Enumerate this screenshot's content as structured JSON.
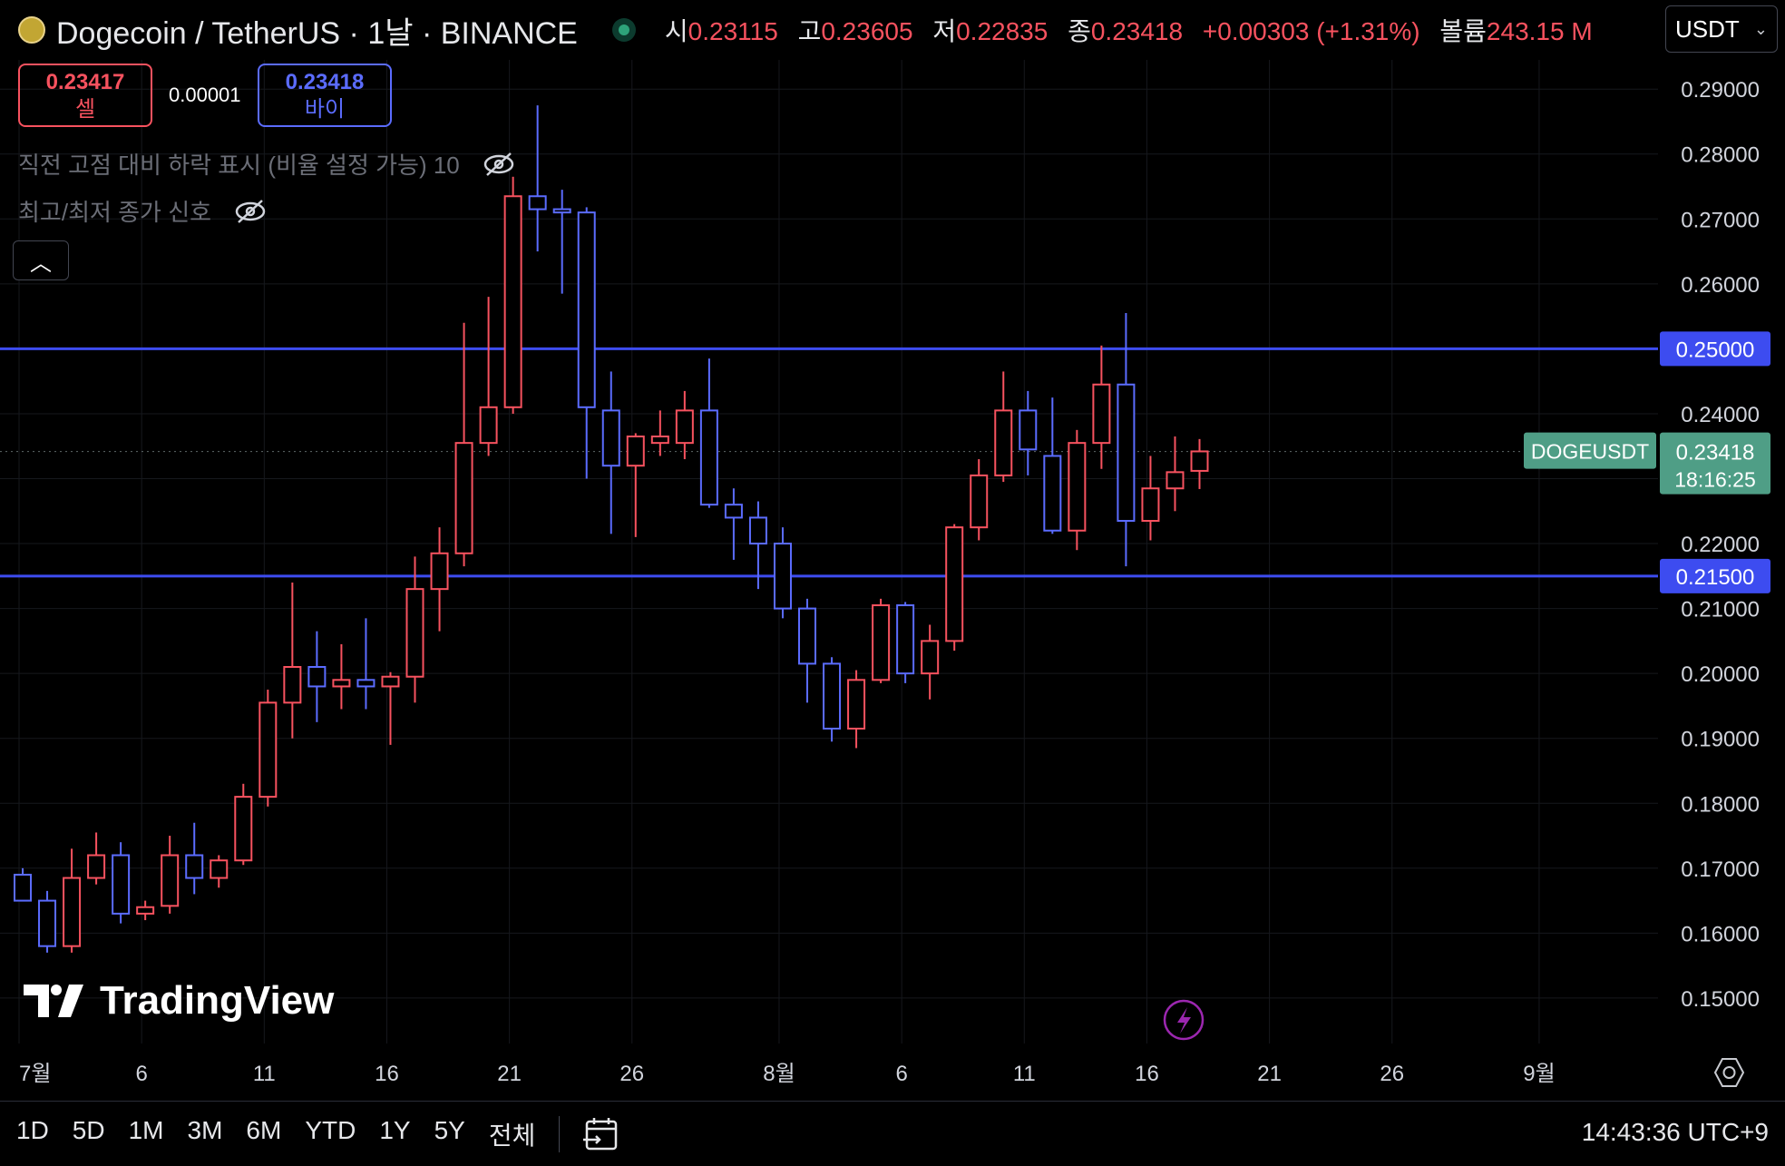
{
  "header": {
    "symbol_title": "Dogecoin / TetherUS · 1날 · BINANCE",
    "ohlc": [
      {
        "key": "시",
        "value": "0.23115"
      },
      {
        "key": "고",
        "value": "0.23605"
      },
      {
        "key": "저",
        "value": "0.22835"
      },
      {
        "key": "종",
        "value": "0.23418"
      }
    ],
    "change": "+0.00303 (+1.31%)",
    "volume_label": "볼륨",
    "volume_value": "243.15 M",
    "currency_select": "USDT"
  },
  "trade": {
    "sell_price": "0.23417",
    "sell_label": "셀",
    "spread": "0.00001",
    "buy_price": "0.23418",
    "buy_label": "바이"
  },
  "indicators": [
    "직전 고점 대비 하락 표시 (비율 설정 가능) 10",
    "최고/최저 종가 신호"
  ],
  "price_labels": {
    "symbol_tag": "DOGEUSDT",
    "last_price": "0.23418",
    "countdown": "18:16:25"
  },
  "logo_text": "TradingView",
  "bottom_bar": {
    "ranges": [
      "1D",
      "5D",
      "1M",
      "3M",
      "6M",
      "YTD",
      "1Y",
      "5Y",
      "전체"
    ],
    "clock": "14:43:36 UTC+9"
  },
  "colors": {
    "up": "#f7525f",
    "down": "#5b6cff",
    "level": "#3d4cf0",
    "last": "#4f9e86",
    "background": "#000000"
  },
  "chart_data": {
    "type": "candlestick",
    "y_ticks": [
      "0.15000",
      "0.16000",
      "0.17000",
      "0.18000",
      "0.19000",
      "0.20000",
      "0.21000",
      "0.22000",
      "0.23000",
      "0.24000",
      "0.25000",
      "0.26000",
      "0.27000",
      "0.28000",
      "0.29000"
    ],
    "ylim": [
      0.143,
      0.2945
    ],
    "x_ticks": [
      {
        "label": "7월",
        "day": 0
      },
      {
        "label": "6",
        "day": 5
      },
      {
        "label": "11",
        "day": 10
      },
      {
        "label": "16",
        "day": 15
      },
      {
        "label": "21",
        "day": 20
      },
      {
        "label": "26",
        "day": 25
      },
      {
        "label": "8월",
        "day": 31
      },
      {
        "label": "6",
        "day": 36
      },
      {
        "label": "11",
        "day": 41
      },
      {
        "label": "16",
        "day": 46
      },
      {
        "label": "21",
        "day": 51
      },
      {
        "label": "26",
        "day": 56
      },
      {
        "label": "9월",
        "day": 62
      }
    ],
    "xlim": [
      0,
      66.7
    ],
    "horizontal_lines": [
      0.25,
      0.215
    ],
    "last_price": 0.23418,
    "candles": [
      {
        "day": 0,
        "o": 0.169,
        "h": 0.17,
        "l": 0.165,
        "c": 0.165
      },
      {
        "day": 1,
        "o": 0.165,
        "h": 0.1665,
        "l": 0.157,
        "c": 0.158
      },
      {
        "day": 2,
        "o": 0.158,
        "h": 0.173,
        "l": 0.157,
        "c": 0.1685
      },
      {
        "day": 3,
        "o": 0.1685,
        "h": 0.1755,
        "l": 0.1675,
        "c": 0.172
      },
      {
        "day": 4,
        "o": 0.172,
        "h": 0.174,
        "l": 0.1615,
        "c": 0.163
      },
      {
        "day": 5,
        "o": 0.163,
        "h": 0.165,
        "l": 0.162,
        "c": 0.164
      },
      {
        "day": 6,
        "o": 0.1642,
        "h": 0.175,
        "l": 0.163,
        "c": 0.172
      },
      {
        "day": 7,
        "o": 0.172,
        "h": 0.177,
        "l": 0.166,
        "c": 0.1685
      },
      {
        "day": 8,
        "o": 0.1685,
        "h": 0.172,
        "l": 0.167,
        "c": 0.1712
      },
      {
        "day": 9,
        "o": 0.1712,
        "h": 0.183,
        "l": 0.1705,
        "c": 0.181
      },
      {
        "day": 10,
        "o": 0.181,
        "h": 0.1975,
        "l": 0.1795,
        "c": 0.1955
      },
      {
        "day": 11,
        "o": 0.1955,
        "h": 0.214,
        "l": 0.19,
        "c": 0.201
      },
      {
        "day": 12,
        "o": 0.201,
        "h": 0.2065,
        "l": 0.1925,
        "c": 0.198
      },
      {
        "day": 13,
        "o": 0.198,
        "h": 0.2045,
        "l": 0.1945,
        "c": 0.199
      },
      {
        "day": 14,
        "o": 0.199,
        "h": 0.2085,
        "l": 0.1945,
        "c": 0.198
      },
      {
        "day": 15,
        "o": 0.198,
        "h": 0.2002,
        "l": 0.189,
        "c": 0.1995
      },
      {
        "day": 16,
        "o": 0.1995,
        "h": 0.218,
        "l": 0.1955,
        "c": 0.213
      },
      {
        "day": 17,
        "o": 0.213,
        "h": 0.2225,
        "l": 0.2065,
        "c": 0.2185
      },
      {
        "day": 18,
        "o": 0.2185,
        "h": 0.254,
        "l": 0.2165,
        "c": 0.2355
      },
      {
        "day": 19,
        "o": 0.2355,
        "h": 0.258,
        "l": 0.2335,
        "c": 0.241
      },
      {
        "day": 20,
        "o": 0.241,
        "h": 0.2765,
        "l": 0.24,
        "c": 0.2735
      },
      {
        "day": 21,
        "o": 0.2735,
        "h": 0.2875,
        "l": 0.265,
        "c": 0.2715
      },
      {
        "day": 22,
        "o": 0.2715,
        "h": 0.2745,
        "l": 0.2585,
        "c": 0.271
      },
      {
        "day": 23,
        "o": 0.271,
        "h": 0.2718,
        "l": 0.23,
        "c": 0.241
      },
      {
        "day": 24,
        "o": 0.2405,
        "h": 0.2465,
        "l": 0.2215,
        "c": 0.232
      },
      {
        "day": 25,
        "o": 0.232,
        "h": 0.237,
        "l": 0.221,
        "c": 0.2365
      },
      {
        "day": 26,
        "o": 0.2355,
        "h": 0.2405,
        "l": 0.2335,
        "c": 0.2365
      },
      {
        "day": 27,
        "o": 0.2355,
        "h": 0.2435,
        "l": 0.233,
        "c": 0.2405
      },
      {
        "day": 28,
        "o": 0.2405,
        "h": 0.2485,
        "l": 0.2255,
        "c": 0.226
      },
      {
        "day": 29,
        "o": 0.226,
        "h": 0.2285,
        "l": 0.2175,
        "c": 0.224
      },
      {
        "day": 30,
        "o": 0.224,
        "h": 0.2265,
        "l": 0.213,
        "c": 0.22
      },
      {
        "day": 31,
        "o": 0.22,
        "h": 0.2225,
        "l": 0.2085,
        "c": 0.21
      },
      {
        "day": 32,
        "o": 0.21,
        "h": 0.2115,
        "l": 0.1955,
        "c": 0.2015
      },
      {
        "day": 33,
        "o": 0.2015,
        "h": 0.2025,
        "l": 0.1895,
        "c": 0.1915
      },
      {
        "day": 34,
        "o": 0.1915,
        "h": 0.2005,
        "l": 0.1885,
        "c": 0.199
      },
      {
        "day": 35,
        "o": 0.199,
        "h": 0.2115,
        "l": 0.1985,
        "c": 0.2105
      },
      {
        "day": 36,
        "o": 0.2105,
        "h": 0.211,
        "l": 0.1985,
        "c": 0.2
      },
      {
        "day": 37,
        "o": 0.2,
        "h": 0.2075,
        "l": 0.196,
        "c": 0.205
      },
      {
        "day": 38,
        "o": 0.205,
        "h": 0.223,
        "l": 0.2035,
        "c": 0.2225
      },
      {
        "day": 39,
        "o": 0.2225,
        "h": 0.233,
        "l": 0.2205,
        "c": 0.2305
      },
      {
        "day": 40,
        "o": 0.2305,
        "h": 0.2465,
        "l": 0.2295,
        "c": 0.2405
      },
      {
        "day": 41,
        "o": 0.2405,
        "h": 0.2435,
        "l": 0.2305,
        "c": 0.2345
      },
      {
        "day": 42,
        "o": 0.2335,
        "h": 0.2425,
        "l": 0.2215,
        "c": 0.222
      },
      {
        "day": 43,
        "o": 0.222,
        "h": 0.2375,
        "l": 0.219,
        "c": 0.2355
      },
      {
        "day": 44,
        "o": 0.2355,
        "h": 0.2505,
        "l": 0.2315,
        "c": 0.2445
      },
      {
        "day": 45,
        "o": 0.2445,
        "h": 0.2555,
        "l": 0.2165,
        "c": 0.2235
      },
      {
        "day": 46,
        "o": 0.2235,
        "h": 0.2335,
        "l": 0.2205,
        "c": 0.2285
      },
      {
        "day": 47,
        "o": 0.2285,
        "h": 0.2365,
        "l": 0.225,
        "c": 0.231
      },
      {
        "day": 48,
        "o": 0.2312,
        "h": 0.2361,
        "l": 0.2284,
        "c": 0.2342
      }
    ]
  }
}
